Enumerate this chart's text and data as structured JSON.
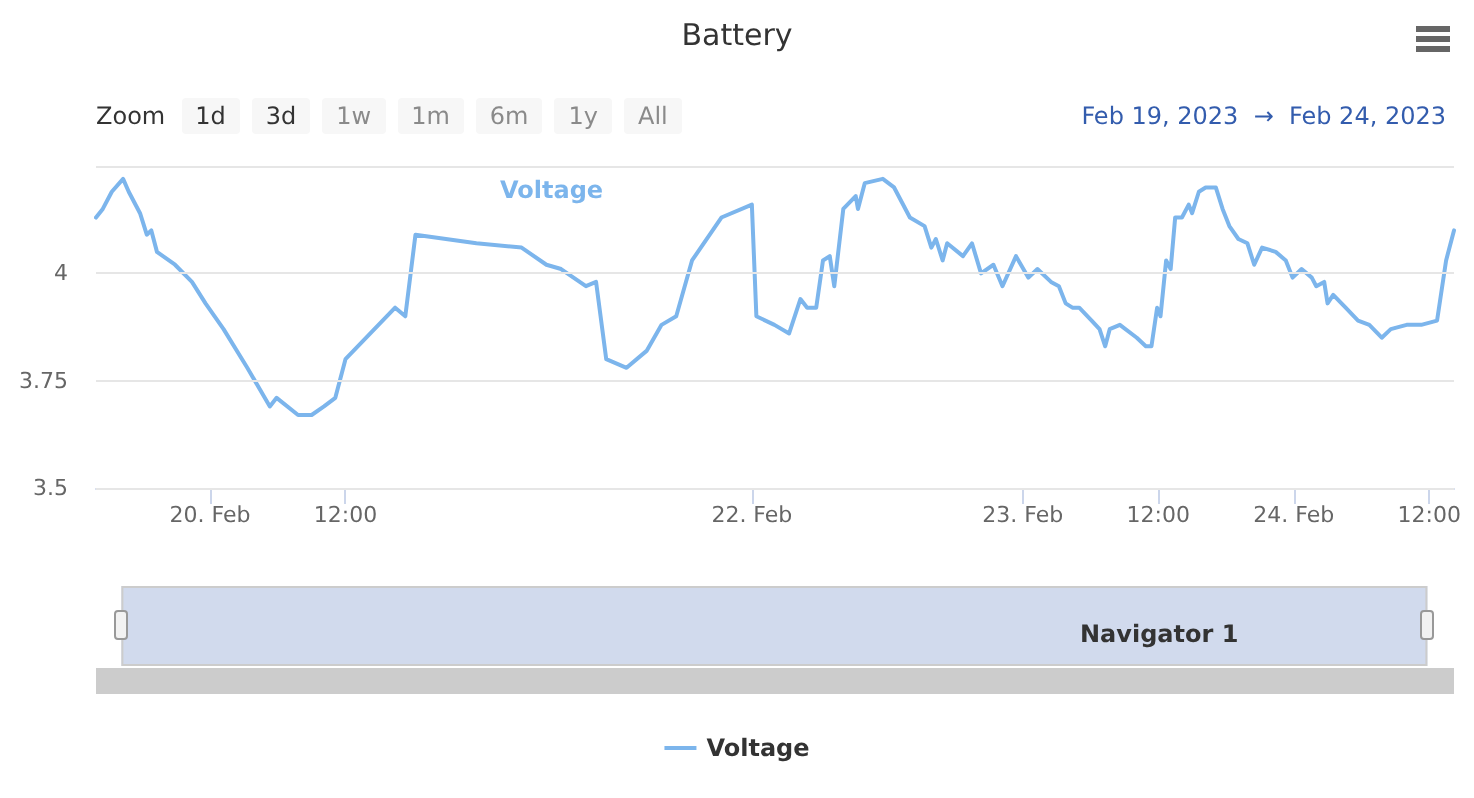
{
  "chart_data": {
    "type": "line",
    "title": "Battery",
    "x": [
      "2023-02-19T13:54",
      "2023-02-19T14:30",
      "2023-02-19T15:18",
      "2023-02-19T16:18",
      "2023-02-19T16:48",
      "2023-02-19T17:48",
      "2023-02-19T18:24",
      "2023-02-19T18:48",
      "2023-02-19T19:18",
      "2023-02-19T20:54",
      "2023-02-19T22:24",
      "2023-02-19T23:36",
      "2023-02-20T01:12",
      "2023-02-20T03:18",
      "2023-02-20T05:18",
      "2023-02-20T05:54",
      "2023-02-20T07:48",
      "2023-02-20T09:00",
      "2023-02-20T10:06",
      "2023-02-20T11:06",
      "2023-02-20T12:00",
      "2023-02-20T14:12",
      "2023-02-20T16:24",
      "2023-02-20T17:18",
      "2023-02-20T18:12",
      "2023-02-20T23:36",
      "2023-02-21T03:36",
      "2023-02-21T05:48",
      "2023-02-21T07:06",
      "2023-02-21T09:18",
      "2023-02-21T10:12",
      "2023-02-21T11:06",
      "2023-02-21T12:54",
      "2023-02-21T14:42",
      "2023-02-21T16:00",
      "2023-02-21T17:18",
      "2023-02-21T18:42",
      "2023-02-21T21:18",
      "2023-02-22T00:00",
      "2023-02-22T00:24",
      "2023-02-22T02:00",
      "2023-02-22T03:18",
      "2023-02-22T04:18",
      "2023-02-22T04:54",
      "2023-02-22T05:42",
      "2023-02-22T06:18",
      "2023-02-22T06:54",
      "2023-02-22T07:18",
      "2023-02-22T08:06",
      "2023-02-22T09:12",
      "2023-02-22T09:24",
      "2023-02-22T10:00",
      "2023-02-22T11:36",
      "2023-02-22T12:36",
      "2023-02-22T14:00",
      "2023-02-22T15:18",
      "2023-02-22T15:54",
      "2023-02-22T16:18",
      "2023-02-22T16:54",
      "2023-02-22T17:18",
      "2023-02-22T18:42",
      "2023-02-22T19:30",
      "2023-02-22T20:18",
      "2023-02-22T21:24",
      "2023-02-22T22:12",
      "2023-02-22T23:24",
      "2023-02-23T00:30",
      "2023-02-23T01:18",
      "2023-02-23T02:30",
      "2023-02-23T03:12",
      "2023-02-23T03:48",
      "2023-02-23T04:24",
      "2023-02-23T05:00",
      "2023-02-23T06:06",
      "2023-02-23T06:48",
      "2023-02-23T07:18",
      "2023-02-23T07:42",
      "2023-02-23T08:36",
      "2023-02-23T10:06",
      "2023-02-23T10:54",
      "2023-02-23T11:24",
      "2023-02-23T11:54",
      "2023-02-23T12:12",
      "2023-02-23T12:42",
      "2023-02-23T13:06",
      "2023-02-23T13:30",
      "2023-02-23T14:06",
      "2023-02-23T14:42",
      "2023-02-23T15:00",
      "2023-02-23T15:36",
      "2023-02-23T16:12",
      "2023-02-23T17:06",
      "2023-02-23T17:42",
      "2023-02-23T18:18",
      "2023-02-23T19:06",
      "2023-02-23T19:54",
      "2023-02-23T20:30",
      "2023-02-23T21:12",
      "2023-02-23T22:24",
      "2023-02-23T23:18",
      "2023-02-23T23:54",
      "2023-02-24T00:42",
      "2023-02-24T01:36",
      "2023-02-24T02:00",
      "2023-02-24T02:42",
      "2023-02-24T03:00",
      "2023-02-24T03:30",
      "2023-02-24T04:36",
      "2023-02-24T05:42",
      "2023-02-24T06:42",
      "2023-02-24T07:48",
      "2023-02-24T08:36",
      "2023-02-24T10:00",
      "2023-02-24T11:18",
      "2023-02-24T12:42",
      "2023-02-24T13:30",
      "2023-02-24T14:12"
    ],
    "series": [
      {
        "name": "Voltage",
        "color": "#7cb5ec",
        "values": [
          4.13,
          4.15,
          4.19,
          4.22,
          4.19,
          4.14,
          4.09,
          4.1,
          4.05,
          4.02,
          3.98,
          3.93,
          3.87,
          3.78,
          3.69,
          3.71,
          3.67,
          3.67,
          3.69,
          3.71,
          3.8,
          3.86,
          3.92,
          3.9,
          4.09,
          4.07,
          4.06,
          4.02,
          4.01,
          3.97,
          3.98,
          3.8,
          3.78,
          3.82,
          3.88,
          3.9,
          4.03,
          4.13,
          4.16,
          3.9,
          3.88,
          3.86,
          3.94,
          3.92,
          3.92,
          4.03,
          4.04,
          3.97,
          4.15,
          4.18,
          4.15,
          4.21,
          4.22,
          4.2,
          4.13,
          4.11,
          4.06,
          4.08,
          4.03,
          4.07,
          4.04,
          4.07,
          4.0,
          4.02,
          3.97,
          4.04,
          3.99,
          4.01,
          3.98,
          3.97,
          3.93,
          3.92,
          3.92,
          3.89,
          3.87,
          3.83,
          3.87,
          3.88,
          3.85,
          3.83,
          3.83,
          3.92,
          3.9,
          4.03,
          4.01,
          4.13,
          4.13,
          4.16,
          4.14,
          4.19,
          4.2,
          4.2,
          4.15,
          4.11,
          4.08,
          4.07,
          4.02,
          4.06,
          4.05,
          4.03,
          3.99,
          4.01,
          3.99,
          3.97,
          3.98,
          3.93,
          3.95,
          3.92,
          3.89,
          3.88,
          3.85,
          3.87,
          3.88,
          3.88,
          3.89,
          4.03,
          4.1
        ]
      }
    ],
    "xlim": [
      "2023-02-19T13:54",
      "2023-02-24T14:12"
    ],
    "xticks": [
      {
        "value": "2023-02-20",
        "label": "20. Feb"
      },
      {
        "value": "2023-02-20T12:00",
        "label": "12:00"
      },
      {
        "value": "2023-02-22",
        "label": "22. Feb"
      },
      {
        "value": "2023-02-23",
        "label": "23. Feb"
      },
      {
        "value": "2023-02-23T12:00",
        "label": "12:00"
      },
      {
        "value": "2023-02-24",
        "label": "24. Feb"
      },
      {
        "value": "2023-02-24T12:00",
        "label": "12:00"
      }
    ],
    "ylim": [
      3.5,
      4.25
    ],
    "yticks": [
      3.5,
      3.75,
      4,
      {
        "value": 4.25,
        "label": null
      }
    ],
    "grid": "y",
    "legend": "bottom",
    "annotations": [
      "Zoom",
      "1d",
      "3d",
      "1w",
      "1m",
      "6m",
      "1y",
      "All",
      "Feb 19, 2023  →  Feb 24, 2023",
      "Navigator 1"
    ]
  }
}
